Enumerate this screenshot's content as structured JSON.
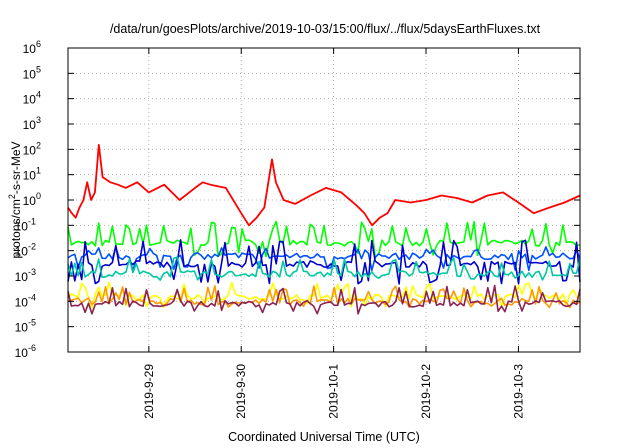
{
  "chart_data": {
    "type": "line",
    "title": "/data/run/goesPlots/archive/2019-10-03/15:00/flux/../flux/5daysEarthFluxes.txt",
    "xlabel": "Coordinated Universal Time (UTC)",
    "ylabel": {
      "main": "protons/cm",
      "sup": "2",
      "rest": "-s-sr-MeV"
    },
    "yscale": "log",
    "ylim": [
      -6,
      6
    ],
    "yticks": [
      {
        "base": "10",
        "exp": "-6"
      },
      {
        "base": "10",
        "exp": "-5"
      },
      {
        "base": "10",
        "exp": "-4"
      },
      {
        "base": "10",
        "exp": "-3"
      },
      {
        "base": "10",
        "exp": "-2"
      },
      {
        "base": "10",
        "exp": "-1"
      },
      {
        "base": "10",
        "exp": "0"
      },
      {
        "base": "10",
        "exp": "1"
      },
      {
        "base": "10",
        "exp": "2"
      },
      {
        "base": "10",
        "exp": "3"
      },
      {
        "base": "10",
        "exp": "4"
      },
      {
        "base": "10",
        "exp": "5"
      },
      {
        "base": "10",
        "exp": "6"
      }
    ],
    "xlim": [
      "2019-09-28T03:00",
      "2019-10-03T16:00"
    ],
    "xticks": [
      {
        "label": "2019-9-29",
        "date": "2019-09-29T00:00"
      },
      {
        "label": "2019-9-30",
        "date": "2019-09-30T00:00"
      },
      {
        "label": "2019-10-1",
        "date": "2019-10-01T00:00"
      },
      {
        "label": "2019-10-2",
        "date": "2019-10-02T00:00"
      },
      {
        "label": "2019-10-3",
        "date": "2019-10-03T00:00"
      }
    ],
    "grid": true,
    "legend": "none",
    "series": [
      {
        "color": "#ff0000",
        "kind": "red",
        "x": [
          "2019-09-28T03:00",
          "2019-09-28T04:00",
          "2019-09-28T05:00",
          "2019-09-28T06:00",
          "2019-09-28T07:00",
          "2019-09-28T08:00",
          "2019-09-28T09:00",
          "2019-09-28T10:00",
          "2019-09-28T11:00",
          "2019-09-28T12:00",
          "2019-09-28T14:00",
          "2019-09-28T16:00",
          "2019-09-28T18:00",
          "2019-09-28T21:00",
          "2019-09-29T00:00",
          "2019-09-29T04:00",
          "2019-09-29T08:00",
          "2019-09-29T12:00",
          "2019-09-29T14:00",
          "2019-09-29T16:00",
          "2019-09-29T20:00",
          "2019-09-30T00:00",
          "2019-09-30T02:00",
          "2019-09-30T04:00",
          "2019-09-30T06:00",
          "2019-09-30T08:00",
          "2019-09-30T09:00",
          "2019-09-30T11:00",
          "2019-09-30T14:00",
          "2019-09-30T18:00",
          "2019-09-30T22:00",
          "2019-10-01T02:00",
          "2019-10-01T06:00",
          "2019-10-01T08:00",
          "2019-10-01T10:00",
          "2019-10-01T12:00",
          "2019-10-01T14:00",
          "2019-10-01T16:00",
          "2019-10-01T20:00",
          "2019-10-02T00:00",
          "2019-10-02T04:00",
          "2019-10-02T08:00",
          "2019-10-02T12:00",
          "2019-10-02T16:00",
          "2019-10-02T20:00",
          "2019-10-03T00:00",
          "2019-10-03T04:00",
          "2019-10-03T08:00",
          "2019-10-03T12:00",
          "2019-10-03T16:00"
        ],
        "y": [
          0.5,
          0.3,
          0.2,
          0.5,
          1.0,
          5.0,
          1.0,
          2.0,
          150,
          8,
          5,
          4,
          3,
          5,
          2,
          4,
          1.0,
          3,
          5,
          4,
          3,
          0.3,
          0.1,
          0.2,
          0.5,
          40,
          5,
          1.0,
          0.7,
          1.5,
          3,
          2,
          0.6,
          0.3,
          0.1,
          0.2,
          0.3,
          1.0,
          0.8,
          1.0,
          1.5,
          1.2,
          0.8,
          1.5,
          2,
          0.8,
          0.3,
          0.5,
          0.8,
          1.5
        ]
      },
      {
        "color": "#00ff00",
        "kind": "noisy",
        "base": 0.02,
        "spike": 0.1,
        "dip": 0.007
      },
      {
        "color": "#0050ff",
        "kind": "noisy",
        "base": 0.006,
        "spike": 0.01,
        "dip": 0.002
      },
      {
        "color": "#0000cc",
        "kind": "noisy",
        "base": 0.003,
        "spike": 0.02,
        "dip": 0.0006
      },
      {
        "color": "#00c8a0",
        "kind": "noisy",
        "base": 0.0012,
        "spike": 0.004,
        "dip": 0.0008
      },
      {
        "color": "#ffff00",
        "kind": "noisy",
        "base": 0.00015,
        "spike": 0.0004,
        "dip": 7e-05
      },
      {
        "color": "#ff9900",
        "kind": "noisy",
        "base": 0.0001,
        "spike": 0.0003,
        "dip": 7e-05
      },
      {
        "color": "#8b2252",
        "kind": "noisy",
        "base": 8e-05,
        "spike": 0.0003,
        "dip": 4e-05
      }
    ]
  }
}
